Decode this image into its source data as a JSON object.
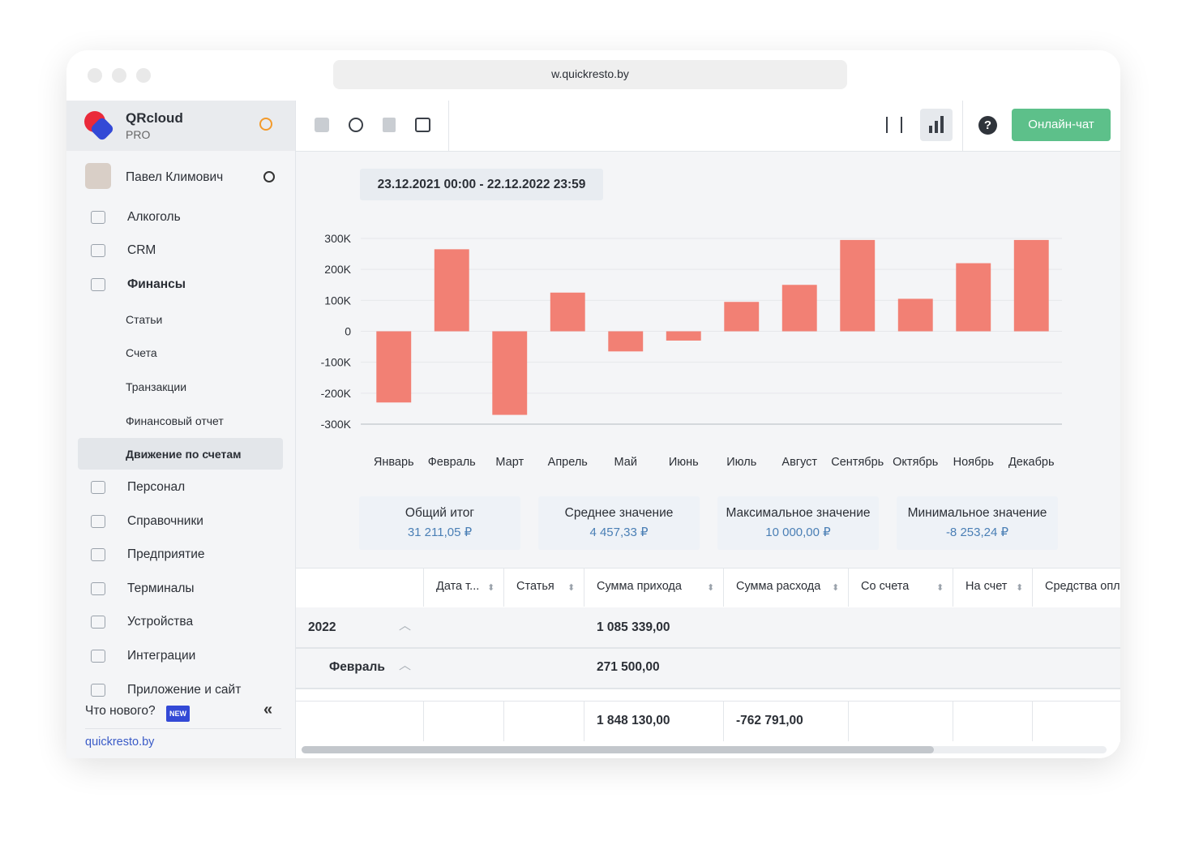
{
  "browser": {
    "url": "w.quickresto.by"
  },
  "sidebar": {
    "brand": {
      "name": "QRcloud",
      "plan": "PRO"
    },
    "user": "Павел Климович",
    "menu_top": [
      "Алкоголь",
      "CRM",
      "Финансы"
    ],
    "submenu": [
      "Статьи",
      "Счета",
      "Транзакции",
      "Финансовый отчет",
      "Движение по счетам"
    ],
    "menu_bottom": [
      "Персонал",
      "Справочники",
      "Предприятие",
      "Терминалы",
      "Устройства",
      "Интеграции",
      "Приложение и сайт"
    ],
    "whats_new": "Что нового?",
    "badge": "NEW",
    "link": "quickresto.by"
  },
  "toolbar": {
    "chat_button": "Онлайн-чат"
  },
  "date_range": "23.12.2021 00:00 - 22.12.2022 23:59",
  "chart_data": {
    "type": "bar",
    "color": "#f28074",
    "grid": true,
    "categories": [
      "Январь",
      "Февраль",
      "Март",
      "Апрель",
      "Май",
      "Июнь",
      "Июль",
      "Август",
      "Сентябрь",
      "Октябрь",
      "Ноябрь",
      "Декабрь"
    ],
    "values": [
      -230000,
      265000,
      -270000,
      125000,
      -65000,
      -30000,
      95000,
      150000,
      295000,
      105000,
      220000,
      295000
    ],
    "ylim": [
      -300000,
      300000
    ],
    "yticks": [
      {
        "value": -300000,
        "label": "-300K"
      },
      {
        "value": -200000,
        "label": "-200K"
      },
      {
        "value": -100000,
        "label": "-100K"
      },
      0,
      {
        "value": 100000,
        "label": "100K"
      },
      {
        "value": 200000,
        "label": "200K"
      },
      {
        "value": 300000,
        "label": "300K"
      }
    ]
  },
  "summary": [
    {
      "label": "Общий итог",
      "value": "31 211,05 ₽"
    },
    {
      "label": "Среднее значение",
      "value": "4 457,33 ₽"
    },
    {
      "label": "Максимальное значение",
      "value": "10 000,00 ₽"
    },
    {
      "label": "Минимальное значение",
      "value": "-8 253,24 ₽"
    }
  ],
  "table": {
    "columns": [
      "Дата т...",
      "Статья",
      "Сумма прихода",
      "Сумма расхода",
      "Со счета",
      "На счет",
      "Средства опл"
    ],
    "rows": [
      [
        "2022",
        "1 085 339,00"
      ],
      [
        "Февраль",
        "271 500,00"
      ]
    ],
    "totals": [
      "1 848 130,00",
      "-762 791,00"
    ]
  }
}
